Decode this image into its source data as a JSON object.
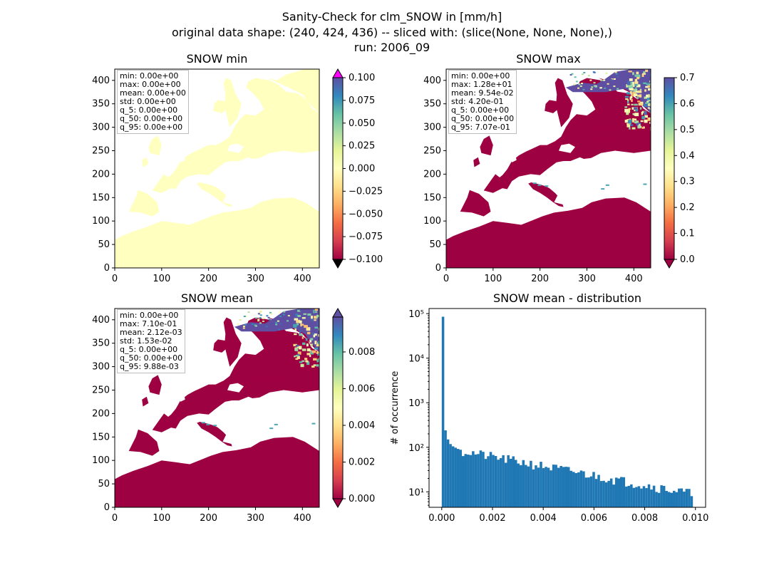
{
  "figure": {
    "title_line1": "Sanity-Check for clm_SNOW in [mm/h]",
    "title_line2": "original data shape: (240, 424, 436) -- sliced with: (slice(None, None, None),)",
    "title_line3": "run: 2006_09"
  },
  "colors": {
    "spectral_r": [
      "#9e0142",
      "#d53e4f",
      "#f46d43",
      "#fdae61",
      "#fee08b",
      "#ffffbf",
      "#e6f598",
      "#abdda4",
      "#66c2a5",
      "#3288bd",
      "#5e4fa2"
    ],
    "over_min": "#ff00ff",
    "under_min": "#000000",
    "nodata": "#ffffff",
    "hist_bar": "#1f77b4",
    "map_low": "#9e0142",
    "map_mid": "#ffffbf",
    "map_high": "#5e4fa2"
  },
  "chart_data": [
    {
      "type": "heatmap",
      "title": "SNOW min",
      "xlim": [
        0,
        436
      ],
      "ylim": [
        0,
        424
      ],
      "xticks": [
        "0",
        "100",
        "200",
        "300",
        "400"
      ],
      "yticks": [
        "0",
        "50",
        "100",
        "150",
        "200",
        "250",
        "300",
        "350",
        "400"
      ],
      "field_value": 0.0,
      "colorbar": {
        "ticks": [
          "0.100",
          "0.075",
          "0.050",
          "0.025",
          "0.000",
          "−0.025",
          "−0.050",
          "−0.075",
          "−0.100"
        ],
        "range": [
          -0.1,
          0.1
        ],
        "extend": "both"
      },
      "stats": [
        "min: 0.00e+00",
        "max: 0.00e+00",
        "mean: 0.00e+00",
        "std: 0.00e+00",
        "q_5: 0.00e+00",
        "q_50: 0.00e+00",
        "q_95: 0.00e+00"
      ]
    },
    {
      "type": "heatmap",
      "title": "SNOW max",
      "xlim": [
        0,
        436
      ],
      "ylim": [
        0,
        424
      ],
      "xticks": [
        "0",
        "100",
        "200",
        "300",
        "400"
      ],
      "yticks": [
        "0",
        "50",
        "100",
        "150",
        "200",
        "250",
        "300",
        "350",
        "400"
      ],
      "colorbar": {
        "ticks": [
          "0.7",
          "0.6",
          "0.5",
          "0.4",
          "0.3",
          "0.2",
          "0.1",
          "0.0"
        ],
        "range": [
          0,
          0.7
        ],
        "extend": "min"
      },
      "stats": [
        "min: 0.00e+00",
        "max: 1.28e+01",
        "mean: 9.54e-02",
        "std: 4.20e-01",
        "q_5: 0.00e+00",
        "q_50: 0.00e+00",
        "q_95: 7.07e-01"
      ]
    },
    {
      "type": "heatmap",
      "title": "SNOW mean",
      "xlim": [
        0,
        436
      ],
      "ylim": [
        0,
        424
      ],
      "xticks": [
        "0",
        "100",
        "200",
        "300",
        "400"
      ],
      "yticks": [
        "0",
        "50",
        "100",
        "150",
        "200",
        "250",
        "300",
        "350",
        "400"
      ],
      "colorbar": {
        "ticks": [
          "0.008",
          "0.006",
          "0.004",
          "0.002",
          "0.000"
        ],
        "range": [
          0,
          0.0099
        ],
        "extend": "both"
      },
      "stats": [
        "min: 0.00e+00",
        "max: 7.10e-01",
        "mean: 2.12e-03",
        "std: 1.53e-02",
        "q_5: 0.00e+00",
        "q_50: 0.00e+00",
        "q_95: 9.88e-03"
      ]
    },
    {
      "type": "bar",
      "title": "SNOW mean - distribution",
      "xlabel": "",
      "ylabel": "# of occurrence",
      "yscale": "log",
      "xlim": [
        -0.0005,
        0.0104
      ],
      "ylim": [
        4.5,
        130000
      ],
      "xticks": [
        "0.000",
        "0.002",
        "0.004",
        "0.006",
        "0.008",
        "0.010"
      ],
      "yticks": [
        "10¹",
        "10²",
        "10³",
        "10⁴",
        "10⁵"
      ],
      "bin_range": [
        0.0,
        0.0099
      ],
      "peak_bins": [
        85000,
        240,
        150,
        118,
        105,
        98,
        92,
        88
      ],
      "trend_start": 82,
      "trend_end": 9,
      "num_bins": 100
    }
  ]
}
